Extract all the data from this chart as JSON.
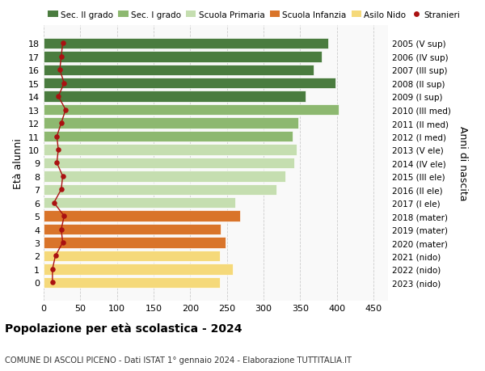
{
  "ages": [
    18,
    17,
    16,
    15,
    14,
    13,
    12,
    11,
    10,
    9,
    8,
    7,
    6,
    5,
    4,
    3,
    2,
    1,
    0
  ],
  "bar_values": [
    388,
    380,
    368,
    398,
    358,
    403,
    348,
    340,
    345,
    342,
    330,
    318,
    262,
    268,
    242,
    248,
    240,
    258,
    240
  ],
  "stranieri": [
    26,
    24,
    22,
    28,
    20,
    30,
    24,
    18,
    20,
    18,
    26,
    24,
    14,
    28,
    24,
    26,
    16,
    12,
    12
  ],
  "right_labels": [
    "2005 (V sup)",
    "2006 (IV sup)",
    "2007 (III sup)",
    "2008 (II sup)",
    "2009 (I sup)",
    "2010 (III med)",
    "2011 (II med)",
    "2012 (I med)",
    "2013 (V ele)",
    "2014 (IV ele)",
    "2015 (III ele)",
    "2016 (II ele)",
    "2017 (I ele)",
    "2018 (mater)",
    "2019 (mater)",
    "2020 (mater)",
    "2021 (nido)",
    "2022 (nido)",
    "2023 (nido)"
  ],
  "bar_colors": [
    "#4a7c3f",
    "#4a7c3f",
    "#4a7c3f",
    "#4a7c3f",
    "#4a7c3f",
    "#8db870",
    "#8db870",
    "#8db870",
    "#c5deb0",
    "#c5deb0",
    "#c5deb0",
    "#c5deb0",
    "#c5deb0",
    "#d9742a",
    "#d9742a",
    "#d9742a",
    "#f5d97a",
    "#f5d97a",
    "#f5d97a"
  ],
  "legend_labels": [
    "Sec. II grado",
    "Sec. I grado",
    "Scuola Primaria",
    "Scuola Infanzia",
    "Asilo Nido",
    "Stranieri"
  ],
  "legend_colors": [
    "#4a7c3f",
    "#8db870",
    "#c5deb0",
    "#d9742a",
    "#f5d97a",
    "#aa1111"
  ],
  "ylabel_left": "Età alunni",
  "ylabel_right": "Anni di nascita",
  "title": "Popolazione per età scolastica - 2024",
  "subtitle": "COMUNE DI ASCOLI PICENO - Dati ISTAT 1° gennaio 2024 - Elaborazione TUTTITALIA.IT",
  "xlim": [
    0,
    470
  ],
  "xticks": [
    0,
    50,
    100,
    150,
    200,
    250,
    300,
    350,
    400,
    450
  ],
  "grid_color": "#cccccc",
  "stranieri_color": "#aa1111",
  "bg_color": "#f9f9f9"
}
